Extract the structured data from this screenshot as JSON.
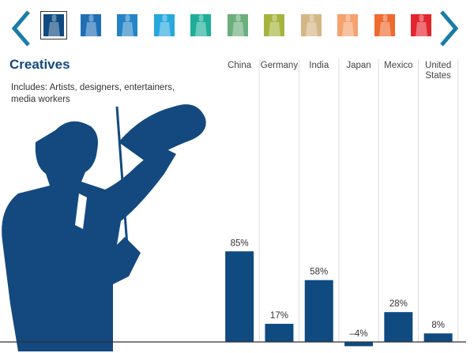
{
  "nav": {
    "prev": "chevron-left-icon",
    "next": "chevron-right-icon",
    "accent": "#1a7ca8"
  },
  "tiles": [
    {
      "color": "#0f4a80",
      "selected": true
    },
    {
      "color": "#1f6fb5"
    },
    {
      "color": "#2584c6"
    },
    {
      "color": "#27a8dc"
    },
    {
      "color": "#1eae98"
    },
    {
      "color": "#6cae7c"
    },
    {
      "color": "#a6b43d"
    },
    {
      "color": "#d5b686"
    },
    {
      "color": "#f5a26e"
    },
    {
      "color": "#ef6a2e"
    },
    {
      "color": "#e3252e"
    }
  ],
  "header": {
    "title": "Creatives",
    "subtitle": "Includes: Artists, designers, entertainers, media workers"
  },
  "chart_data": {
    "type": "bar",
    "categories": [
      "China",
      "Germany",
      "India",
      "Japan",
      "Mexico",
      "United States"
    ],
    "values": [
      85,
      17,
      58,
      -4,
      28,
      8
    ],
    "labels": [
      "85%",
      "17%",
      "58%",
      "–4%",
      "28%",
      "8%"
    ],
    "bar_color": "#0f4a80",
    "grid": "vertical separators",
    "legend": "none"
  }
}
